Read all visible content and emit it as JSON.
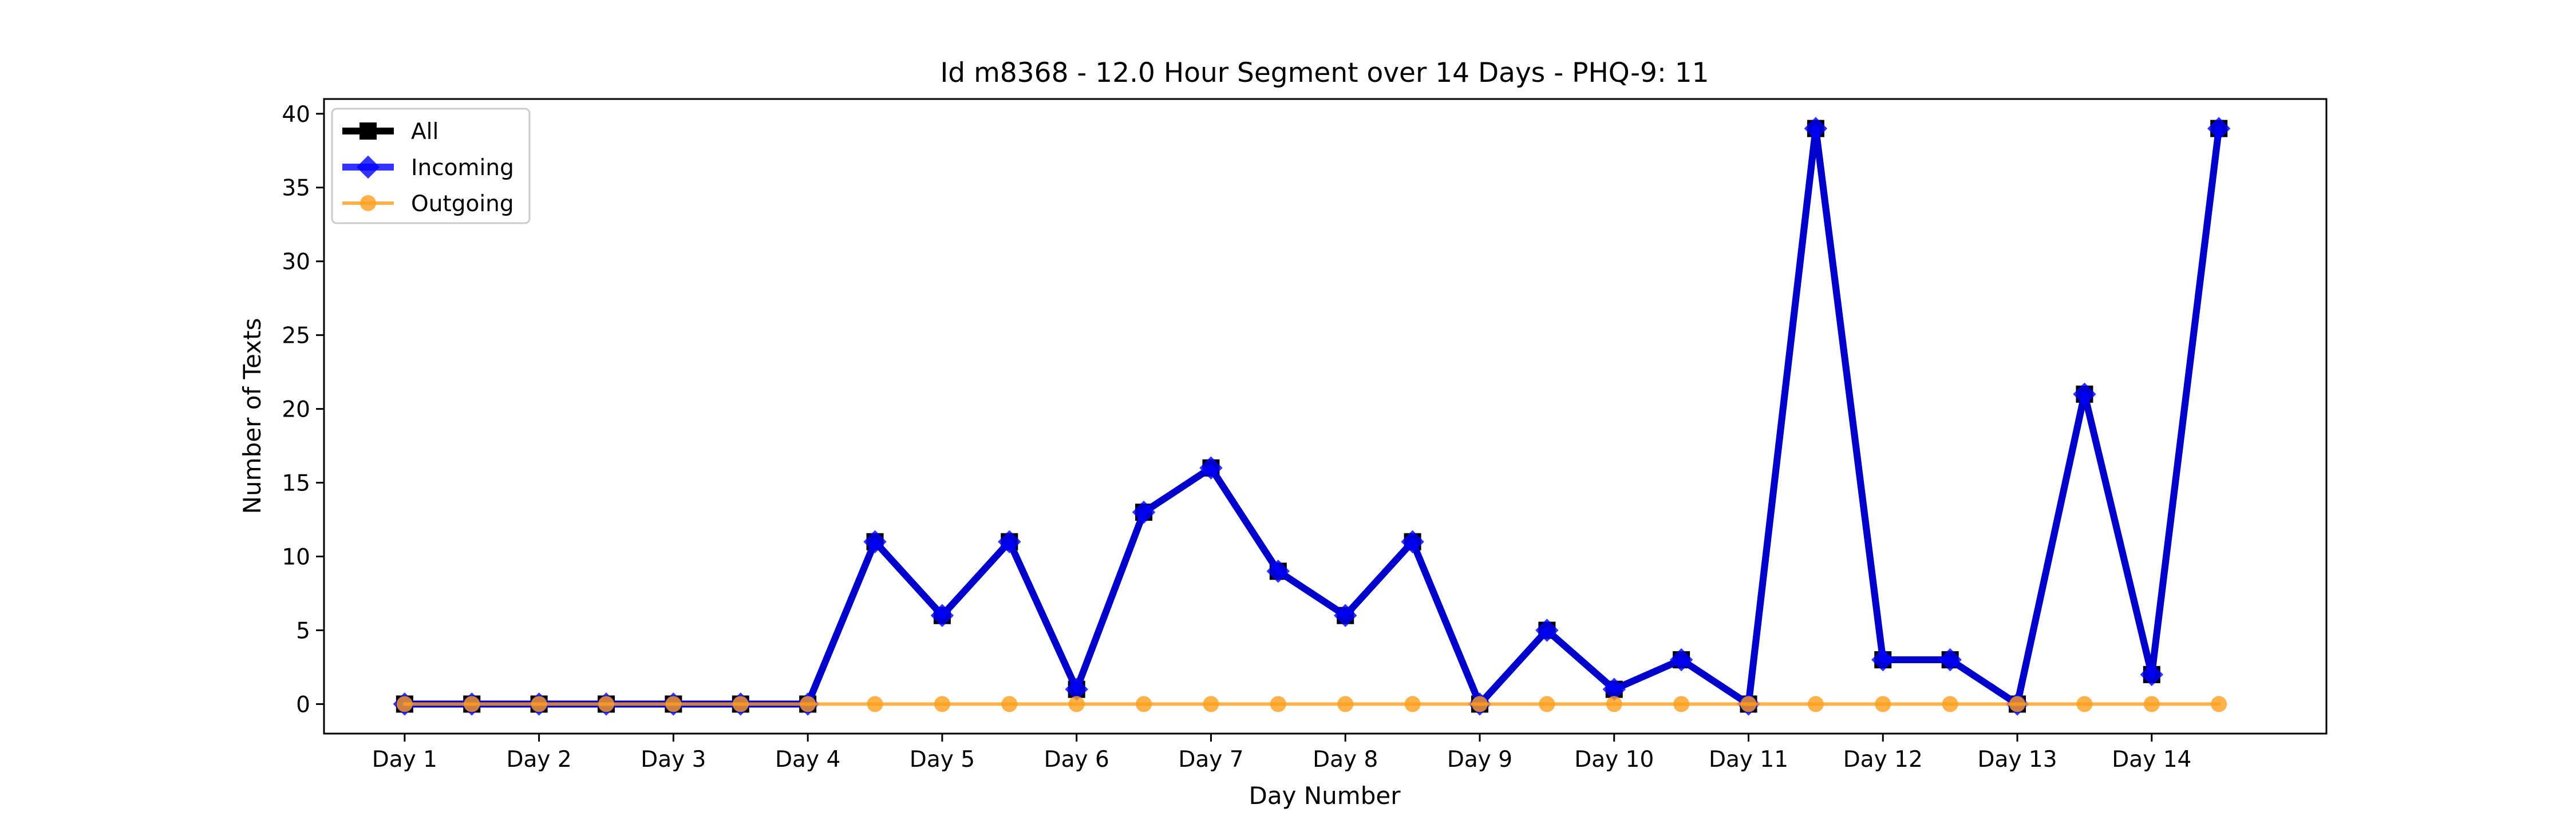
{
  "chart_data": {
    "type": "line",
    "title": "Id m8368 - 12.0 Hour Segment over 14 Days - PHQ-9: 11",
    "xlabel": "Day Number",
    "ylabel": "Number of Texts",
    "x_tick_labels": [
      "Day 1",
      "Day 2",
      "Day 3",
      "Day 4",
      "Day 5",
      "Day 6",
      "Day 7",
      "Day 8",
      "Day 9",
      "Day 10",
      "Day 11",
      "Day 12",
      "Day 13",
      "Day 14"
    ],
    "y_ticks": [
      0,
      5,
      10,
      15,
      20,
      25,
      30,
      35,
      40
    ],
    "xlim": [
      0.4,
      15.3
    ],
    "ylim": [
      -2,
      41
    ],
    "grid": false,
    "legend_position": "top-left",
    "x": [
      1,
      1.5,
      2,
      2.5,
      3,
      3.5,
      4,
      4.5,
      5,
      5.5,
      6,
      6.5,
      7,
      7.5,
      8,
      8.5,
      9,
      9.5,
      10,
      10.5,
      11,
      11.5,
      12,
      12.5,
      13,
      13.5,
      14,
      14.5
    ],
    "series": [
      {
        "name": "All",
        "color": "#000000",
        "marker": "square",
        "values": [
          0,
          0,
          0,
          0,
          0,
          0,
          0,
          11,
          6,
          11,
          1,
          13,
          16,
          9,
          6,
          11,
          0,
          5,
          1,
          3,
          0,
          39,
          3,
          3,
          0,
          21,
          2,
          39
        ]
      },
      {
        "name": "Incoming",
        "color": "#0000ff",
        "marker": "diamond",
        "values": [
          0,
          0,
          0,
          0,
          0,
          0,
          0,
          11,
          6,
          11,
          1,
          13,
          16,
          9,
          6,
          11,
          0,
          5,
          1,
          3,
          0,
          39,
          3,
          3,
          0,
          21,
          2,
          39
        ]
      },
      {
        "name": "Outgoing",
        "color": "#ff9f1c",
        "marker": "circle",
        "values": [
          0,
          0,
          0,
          0,
          0,
          0,
          0,
          0,
          0,
          0,
          0,
          0,
          0,
          0,
          0,
          0,
          0,
          0,
          0,
          0,
          0,
          0,
          0,
          0,
          0,
          0,
          0,
          0
        ]
      }
    ]
  }
}
